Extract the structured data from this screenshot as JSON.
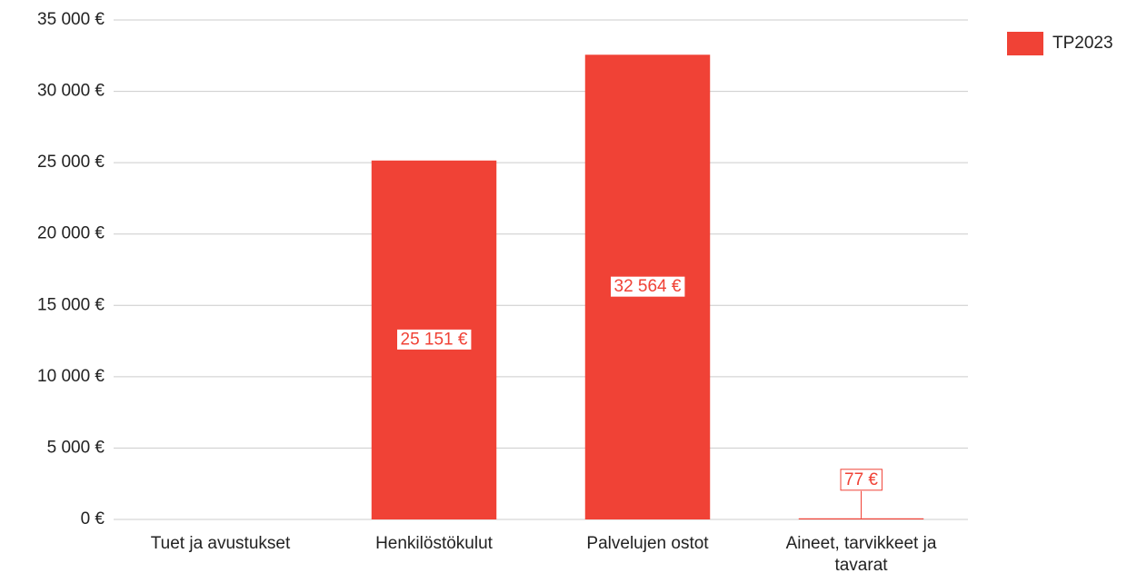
{
  "chart_data": {
    "type": "bar",
    "categories": [
      "Tuet ja avustukset",
      "Henkilöstökulut",
      "Palvelujen ostot",
      "Aineet, tarvikkeet ja tavarat"
    ],
    "series": [
      {
        "name": "TP2023",
        "color": "#f04236",
        "values": [
          null,
          25151,
          32564,
          77
        ],
        "value_labels": [
          null,
          "25 151 €",
          "32 564 €",
          "77 €"
        ]
      }
    ],
    "ylim": [
      0,
      35000
    ],
    "yticks": [
      {
        "value": 0,
        "label": "0 €"
      },
      {
        "value": 5000,
        "label": "5 000 €"
      },
      {
        "value": 10000,
        "label": "10 000 €"
      },
      {
        "value": 15000,
        "label": "15 000 €"
      },
      {
        "value": 20000,
        "label": "20 000 €"
      },
      {
        "value": 25000,
        "label": "25 000 €"
      },
      {
        "value": 30000,
        "label": "30 000 €"
      },
      {
        "value": 35000,
        "label": "35 000 €"
      }
    ],
    "grid": true,
    "legend": "top-right"
  }
}
